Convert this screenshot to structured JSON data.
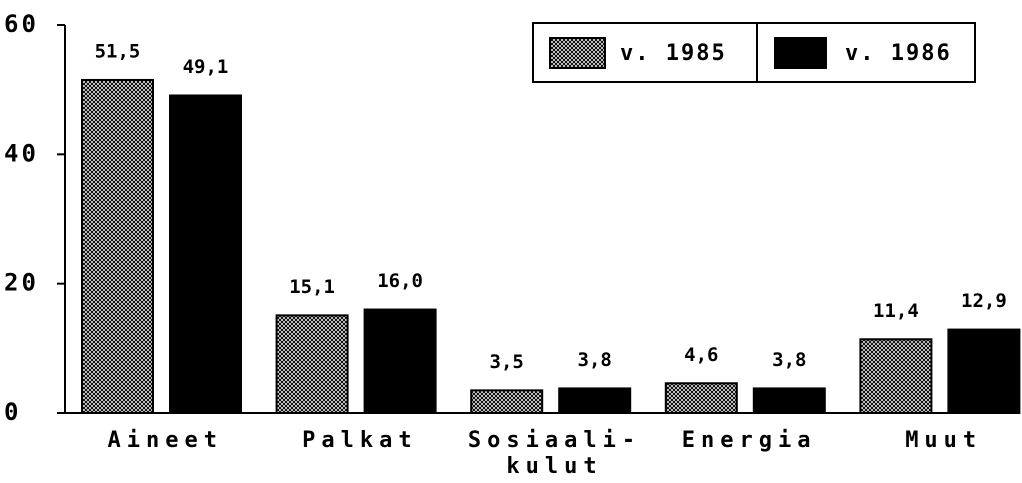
{
  "chart_data": {
    "type": "bar",
    "categories": [
      "Aineet",
      "Palkat",
      "Sosiaali-\nkulut",
      "Energia",
      "Muut"
    ],
    "series": [
      {
        "name": "v. 1985",
        "color": "#000000",
        "pattern": "crosshatch",
        "values": [
          51.5,
          15.1,
          3.5,
          4.6,
          11.4
        ],
        "value_labels": [
          "51,5",
          "15,1",
          "3,5",
          "4,6",
          "11,4"
        ]
      },
      {
        "name": "v. 1986",
        "color": "#000000",
        "pattern": "solid",
        "values": [
          49.1,
          16.0,
          3.8,
          3.8,
          12.9
        ],
        "value_labels": [
          "49,1",
          "16,0",
          "3,8",
          "3,8",
          "12,9"
        ]
      }
    ],
    "ylim": [
      0,
      60
    ],
    "yticks": [
      0,
      20,
      40,
      60
    ],
    "legend": "top-right",
    "grid": false
  }
}
